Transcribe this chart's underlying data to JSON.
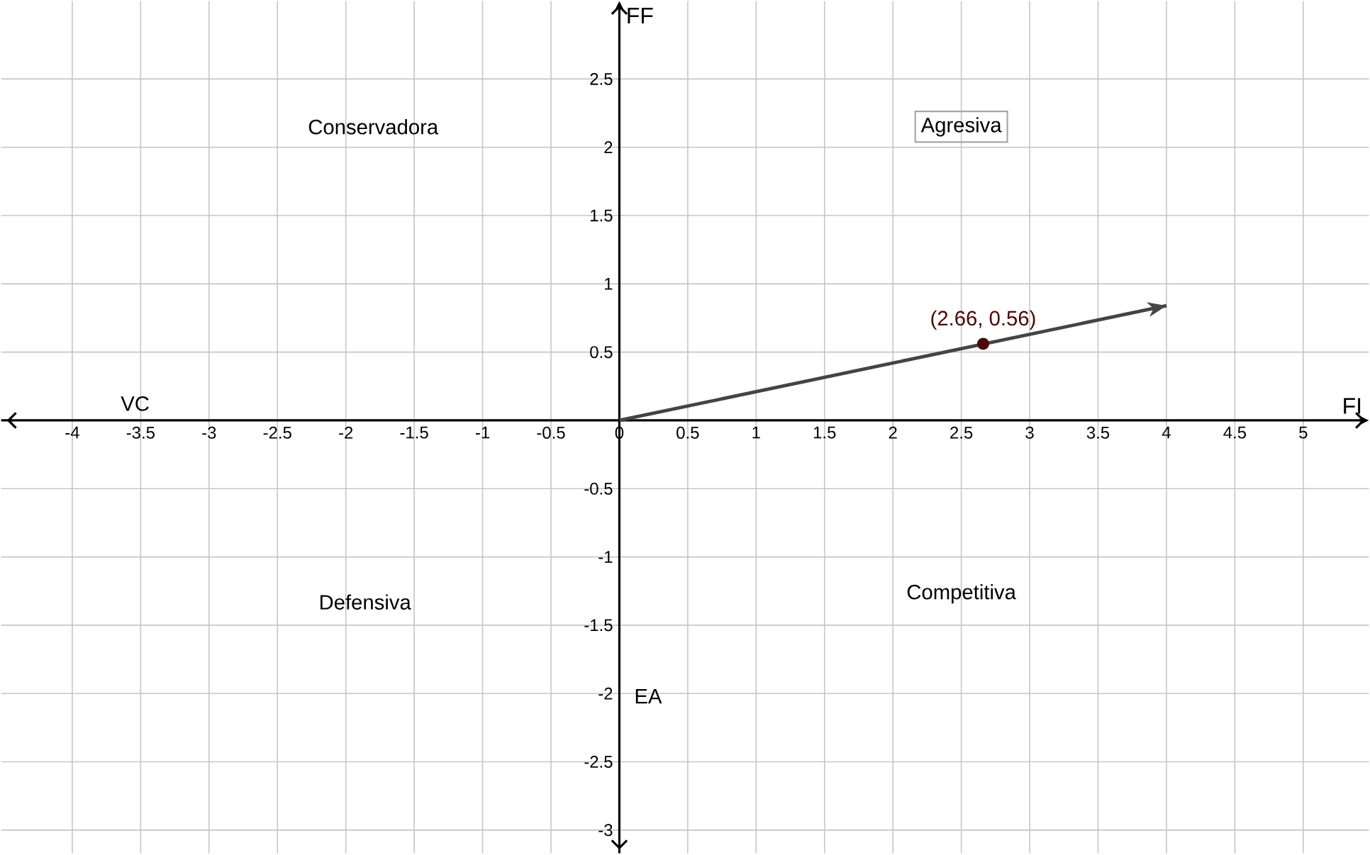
{
  "chart_data": {
    "type": "scatter",
    "xlabel": "FI",
    "ylabel": "FF",
    "xlim": [
      -4.52,
      5.48
    ],
    "ylim": [
      -3.17,
      3.07
    ],
    "xticks": [
      -4,
      -3.5,
      -3,
      -2.5,
      -2,
      -1.5,
      -1,
      -0.5,
      0,
      0.5,
      1,
      1.5,
      2,
      2.5,
      3,
      3.5,
      4,
      4.5,
      5
    ],
    "yticks": [
      -3,
      -2.5,
      -2,
      -1.5,
      -1,
      -0.5,
      0.5,
      1,
      1.5,
      2,
      2.5
    ],
    "grid": true,
    "series": [
      {
        "type": "line",
        "x": [
          0,
          4
        ],
        "values": [
          0,
          0.84
        ],
        "color": "#444444",
        "marker": "none"
      },
      {
        "x": [
          2.66
        ],
        "values": [
          0.56
        ],
        "color": "#4a0a0a",
        "marker": "circle"
      }
    ],
    "annotations": [
      {
        "text": "(2.66, 0.56)",
        "x": 2.66,
        "y": 0.56
      },
      "Conservadora",
      "Agresiva",
      "Defensiva",
      "Competitiva",
      "VC",
      "EA"
    ]
  }
}
